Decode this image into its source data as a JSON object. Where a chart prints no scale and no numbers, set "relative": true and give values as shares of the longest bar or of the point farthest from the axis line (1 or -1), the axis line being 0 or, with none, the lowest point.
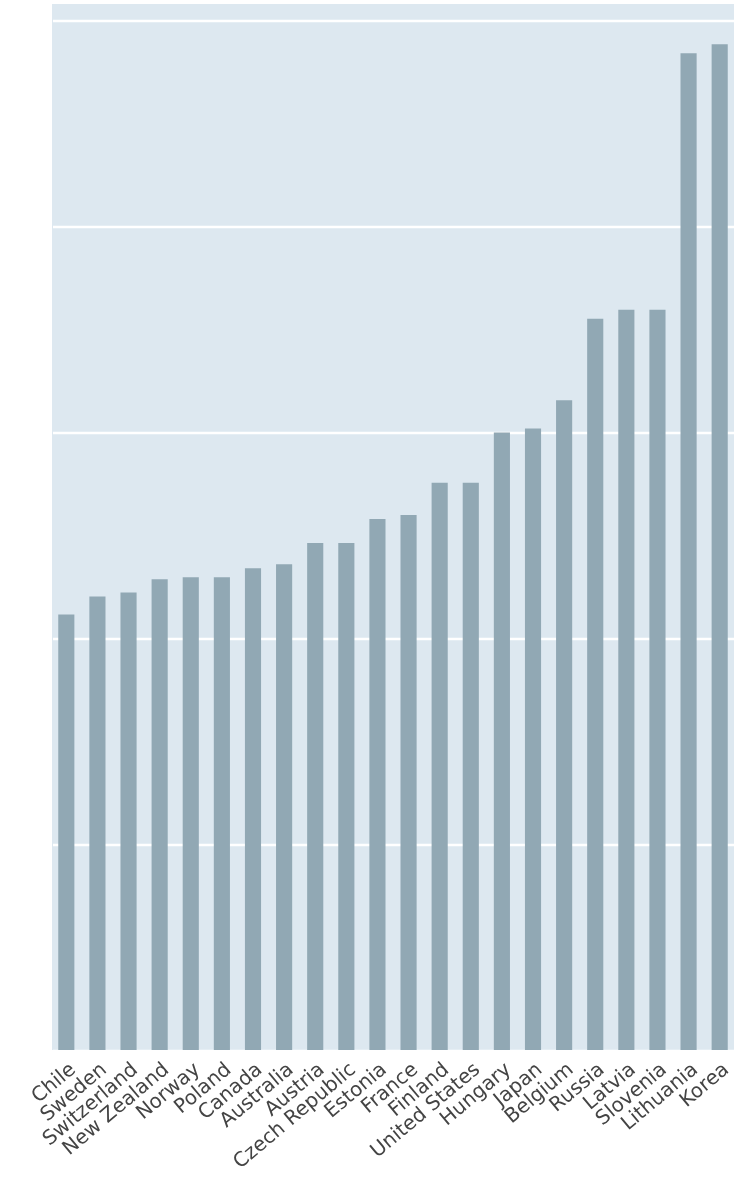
{
  "chart_data": {
    "type": "bar",
    "relative": true,
    "grid": "y",
    "color": "#91a8b4",
    "categories": [
      "Chile",
      "Sweden",
      "Switzerland",
      "New Zealand",
      "Norway",
      "Poland",
      "Canada",
      "Australia",
      "Austria",
      "Czech Republic",
      "Estonia",
      "France",
      "Finland",
      "United States",
      "Hungary",
      "Japan",
      "Belgium",
      "Russia",
      "Latvia",
      "Slovenia",
      "Lithuania",
      "Korea"
    ],
    "values": [
      0.433,
      0.451,
      0.455,
      0.468,
      0.47,
      0.47,
      0.479,
      0.483,
      0.504,
      0.504,
      0.528,
      0.532,
      0.564,
      0.564,
      0.614,
      0.618,
      0.646,
      0.727,
      0.736,
      0.736,
      0.991,
      1
    ]
  }
}
